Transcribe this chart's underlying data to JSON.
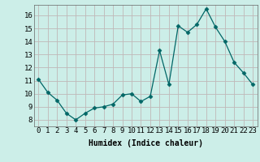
{
  "x": [
    0,
    1,
    2,
    3,
    4,
    5,
    6,
    7,
    8,
    9,
    10,
    11,
    12,
    13,
    14,
    15,
    16,
    17,
    18,
    19,
    20,
    21,
    22,
    23
  ],
  "y": [
    11.1,
    10.1,
    9.5,
    8.5,
    8.0,
    8.5,
    8.9,
    9.0,
    9.2,
    9.9,
    10.0,
    9.4,
    9.8,
    13.3,
    10.7,
    15.2,
    14.7,
    15.3,
    16.5,
    15.1,
    14.0,
    12.4,
    11.6,
    10.7
  ],
  "xlabel": "Humidex (Indice chaleur)",
  "ylabel": "",
  "xlim": [
    -0.5,
    23.5
  ],
  "ylim": [
    7.5,
    16.8
  ],
  "yticks": [
    8,
    9,
    10,
    11,
    12,
    13,
    14,
    15,
    16
  ],
  "xtick_labels": [
    "0",
    "1",
    "2",
    "3",
    "4",
    "5",
    "6",
    "7",
    "8",
    "9",
    "10",
    "11",
    "12",
    "13",
    "14",
    "15",
    "16",
    "17",
    "18",
    "19",
    "20",
    "21",
    "22",
    "23"
  ],
  "line_color": "#006666",
  "marker": "D",
  "marker_size": 2.5,
  "bg_color": "#cceee8",
  "grid_color": "#c0b8b8",
  "title_fontsize": 7,
  "axis_fontsize": 7,
  "tick_fontsize": 6.5
}
